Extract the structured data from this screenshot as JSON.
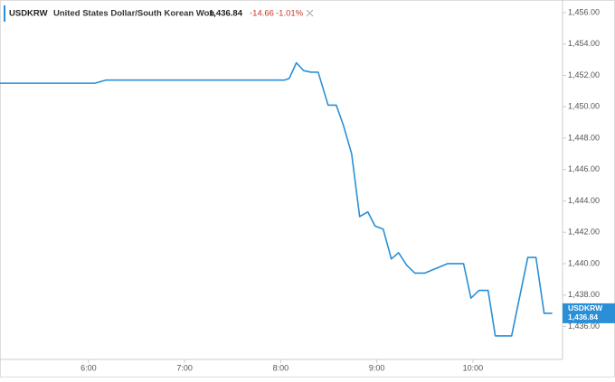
{
  "chart_data": {
    "type": "line",
    "header": {
      "symbol": "USDKRW",
      "name": "United States Dollar/South Korean Won",
      "price": "1,436.84",
      "change": "-14.66",
      "change_pct": "-1.01%"
    },
    "x": [
      304.7,
      364,
      371,
      482.5,
      485.3,
      489.8,
      494.3,
      498.9,
      503.4,
      509.6,
      514.7,
      519.2,
      524.3,
      529.3,
      534.4,
      538.9,
      544,
      549.1,
      553.6,
      558.7,
      563.8,
      570,
      584.1,
      594.2,
      598.8,
      603.8,
      609.5,
      614,
      624.2,
      634.3,
      639.4,
      644.5,
      649.6
    ],
    "series": [
      {
        "name": "USDKRW",
        "color": "#2a8fd6",
        "values": [
          1451.5,
          1451.5,
          1451.7,
          1451.7,
          1451.8,
          1452.8,
          1452.3,
          1452.2,
          1452.2,
          1450.1,
          1450.1,
          1448.8,
          1447,
          1443,
          1443.3,
          1442.4,
          1442.2,
          1440.3,
          1440.7,
          1439.9,
          1439.4,
          1439.4,
          1440,
          1440,
          1437.8,
          1438.3,
          1438.3,
          1435.4,
          1435.4,
          1440.4,
          1440.4,
          1436.84,
          1436.84
        ]
      }
    ],
    "xlim": [
      304.7,
      656
    ],
    "xticks": [
      {
        "value": 360,
        "label": "6:00"
      },
      {
        "value": 420,
        "label": "7:00"
      },
      {
        "value": 480,
        "label": "8:00"
      },
      {
        "value": 540,
        "label": "9:00"
      },
      {
        "value": 600,
        "label": "10:00"
      }
    ],
    "ylim": [
      1433.9,
      1456.8
    ],
    "yticks": [
      {
        "value": 1436,
        "label": "1,436.00"
      },
      {
        "value": 1438,
        "label": "1,438.00"
      },
      {
        "value": 1440,
        "label": "1,440.00"
      },
      {
        "value": 1442,
        "label": "1,442.00"
      },
      {
        "value": 1444,
        "label": "1,444.00"
      },
      {
        "value": 1446,
        "label": "1,446.00"
      },
      {
        "value": 1448,
        "label": "1,448.00"
      },
      {
        "value": 1450,
        "label": "1,450.00"
      },
      {
        "value": 1452,
        "label": "1,452.00"
      },
      {
        "value": 1454,
        "label": "1,454.00"
      },
      {
        "value": 1456,
        "label": "1,456.00"
      }
    ],
    "grid": false
  }
}
